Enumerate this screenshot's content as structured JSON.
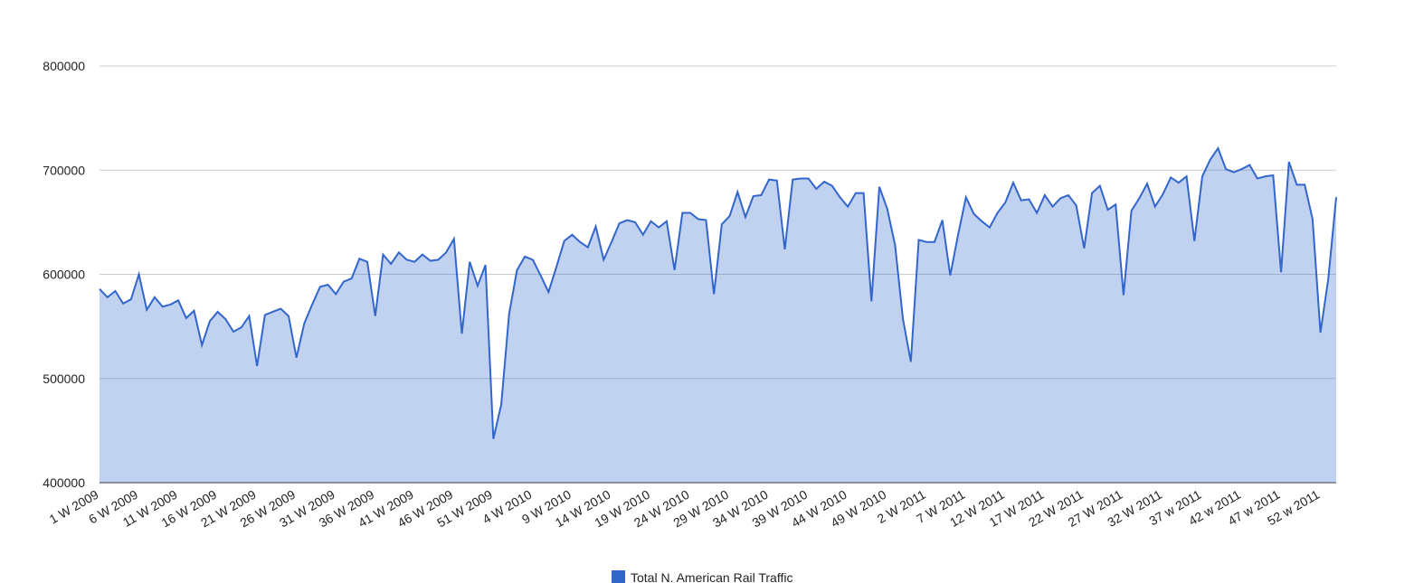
{
  "chart_data": {
    "type": "area",
    "categories": [
      "1 W 2009",
      null,
      null,
      null,
      null,
      "6 W 2009",
      null,
      null,
      null,
      null,
      "11 W 2009",
      null,
      null,
      null,
      null,
      "16 W 2009",
      null,
      null,
      null,
      null,
      "21 W 2009",
      null,
      null,
      null,
      null,
      "26 W 2009",
      null,
      null,
      null,
      null,
      "31 W 2009",
      null,
      null,
      null,
      null,
      "36 W 2009",
      null,
      null,
      null,
      null,
      "41 W 2009",
      null,
      null,
      null,
      null,
      "46 W 2009",
      null,
      null,
      null,
      null,
      "51 W 2009",
      null,
      null,
      null,
      null,
      "4 W 2010",
      null,
      null,
      null,
      null,
      "9 W 2010",
      null,
      null,
      null,
      null,
      "14 W 2010",
      null,
      null,
      null,
      null,
      "19 W 2010",
      null,
      null,
      null,
      null,
      "24 W 2010",
      null,
      null,
      null,
      null,
      "29 W 2010",
      null,
      null,
      null,
      null,
      "34 W 2010",
      null,
      null,
      null,
      null,
      "39 W 2010",
      null,
      null,
      null,
      null,
      "44 W 2010",
      null,
      null,
      null,
      null,
      "49 W 2010",
      null,
      null,
      null,
      null,
      "2 W 2011",
      null,
      null,
      null,
      null,
      "7 W 2011",
      null,
      null,
      null,
      null,
      "12 W 2011",
      null,
      null,
      null,
      null,
      "17 W 2011",
      null,
      null,
      null,
      null,
      "22 W 2011",
      null,
      null,
      null,
      null,
      "27 W 2011",
      null,
      null,
      null,
      null,
      "32 W 2011",
      null,
      null,
      null,
      null,
      "37 w 2011",
      null,
      null,
      null,
      null,
      "42 w 2011",
      null,
      null,
      null,
      null,
      "47 w 2011",
      null,
      null,
      null,
      null,
      "52 w 2011",
      null,
      null
    ],
    "series": [
      {
        "name": "Total N. American Rail Traffic",
        "color": "#3366cc",
        "values": [
          586000,
          578000,
          584000,
          572000,
          576000,
          600000,
          566000,
          578000,
          569000,
          571000,
          575000,
          558000,
          565000,
          532000,
          555000,
          564000,
          557000,
          545000,
          549000,
          560000,
          512000,
          561000,
          564000,
          567000,
          560000,
          520000,
          553000,
          571000,
          588000,
          590000,
          581000,
          593000,
          596000,
          615000,
          612000,
          560000,
          619000,
          610000,
          621000,
          614000,
          612000,
          619000,
          613000,
          614000,
          621000,
          634000,
          543000,
          612000,
          589000,
          609000,
          442000,
          475000,
          562000,
          604000,
          617000,
          614000,
          599000,
          583000,
          607000,
          632000,
          638000,
          631000,
          626000,
          646000,
          614000,
          631000,
          649000,
          652000,
          650000,
          638000,
          651000,
          645000,
          651000,
          604000,
          659000,
          659000,
          653000,
          652000,
          581000,
          648000,
          656000,
          679000,
          655000,
          675000,
          676000,
          691000,
          690000,
          624000,
          691000,
          692000,
          692000,
          682000,
          689000,
          685000,
          674000,
          665000,
          678000,
          678000,
          574000,
          684000,
          663000,
          628000,
          557000,
          516000,
          633000,
          631000,
          631000,
          652000,
          599000,
          638000,
          674000,
          658000,
          651000,
          645000,
          659000,
          669000,
          688000,
          671000,
          672000,
          659000,
          676000,
          665000,
          673000,
          676000,
          666000,
          625000,
          678000,
          685000,
          662000,
          667000,
          580000,
          661000,
          673000,
          687000,
          665000,
          677000,
          693000,
          688000,
          694000,
          632000,
          694000,
          710000,
          721000,
          701000,
          698000,
          701000,
          705000,
          692000,
          694000,
          695000,
          602000,
          708000,
          686000,
          686000,
          653000,
          544000,
          596000,
          674000
        ]
      }
    ],
    "ylim": [
      400000,
      800000
    ],
    "yticks": [
      400000,
      500000,
      600000,
      700000,
      800000
    ],
    "grid": true,
    "legend": "bottom"
  }
}
